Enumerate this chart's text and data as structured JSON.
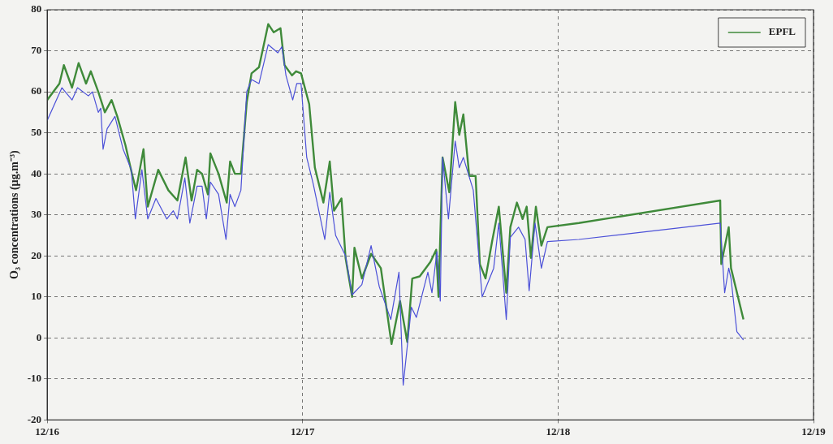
{
  "chart_data": {
    "type": "line",
    "ylabel": "O₃ concentrations (µg.m⁻³)",
    "xlim": [
      "--12-16",
      "--12-19"
    ],
    "xticks": [
      {
        "value": "--12-16",
        "label": "12/16"
      },
      {
        "value": "--12-17",
        "label": "12/17"
      },
      {
        "value": "--12-18",
        "label": "12/18"
      },
      {
        "value": "--12-19",
        "label": "12/19"
      }
    ],
    "ylim": [
      -20,
      80
    ],
    "yticks": [
      -20,
      -10,
      0,
      10,
      20,
      30,
      40,
      50,
      60,
      70,
      80
    ],
    "grid": true,
    "legend": "top right",
    "marker": "none",
    "line_style": "solid",
    "series": [
      {
        "color": "#4b50d8",
        "x": [
          "--12-16T00:00",
          "--12-16T01:23",
          "--12-16T02:20",
          "--12-16T02:51",
          "--12-16T03:52",
          "--12-16T04:15",
          "--12-16T04:48",
          "--12-16T05:02",
          "--12-16T05:15",
          "--12-16T05:38",
          "--12-16T06:22",
          "--12-16T07:08",
          "--12-16T07:54",
          "--12-16T08:17",
          "--12-16T08:54",
          "--12-16T09:27",
          "--12-16T10:13",
          "--12-16T11:14",
          "--12-16T11:51",
          "--12-16T12:14",
          "--12-16T12:56",
          "--12-16T13:24",
          "--12-16T14:05",
          "--12-16T14:33",
          "--12-16T14:57",
          "--12-16T15:20",
          "--12-16T16:06",
          "--12-16T16:48",
          "--12-16T17:11",
          "--12-16T17:38",
          "--12-16T18:12",
          "--12-16T18:45",
          "--12-16T19:12",
          "--12-16T19:54",
          "--12-16T20:46",
          "--12-16T21:40",
          "--12-16T22:03",
          "--12-16T22:26",
          "--12-16T23:04",
          "--12-16T23:27",
          "--12-16T23:51",
          "--12-17T00:23",
          "--12-17T01:00",
          "--12-17T02:05",
          "--12-17T02:33",
          "--12-17T03:06",
          "--12-17T04:02",
          "--12-17T04:39",
          "--12-17T05:34",
          "--12-17T06:26",
          "--12-17T07:12",
          "--12-17T08:17",
          "--12-17T09:03",
          "--12-17T09:27",
          "--12-17T10:13",
          "--12-17T10:41",
          "--12-17T11:46",
          "--12-17T12:09",
          "--12-17T12:37",
          "--12-17T12:56",
          "--12-17T13:09",
          "--12-17T13:42",
          "--12-17T14:20",
          "--12-17T14:43",
          "--12-17T15:06",
          "--12-17T16:02",
          "--12-17T16:52",
          "--12-17T17:57",
          "--12-17T18:26",
          "--12-17T19:08",
          "--12-17T19:31",
          "--12-17T20:17",
          "--12-17T20:54",
          "--12-17T21:17",
          "--12-17T21:50",
          "--12-17T22:26",
          "--12-17T23:00",
          "--12-18T01:57",
          "--12-18T15:14",
          "--12-18T15:39",
          "--12-18T16:02",
          "--12-18T16:15",
          "--12-18T16:48",
          "--12-18T17:25"
        ],
        "values": [
          53,
          61,
          58,
          61,
          59,
          60,
          55,
          56,
          46,
          51,
          54,
          46,
          41,
          29,
          41,
          29,
          34,
          29,
          31,
          29,
          39,
          28,
          37,
          37,
          29,
          38,
          35,
          24,
          35,
          32,
          36,
          60,
          63,
          62,
          71.5,
          69.5,
          71,
          64,
          58,
          62,
          62,
          44,
          37.5,
          24,
          35.5,
          25,
          20,
          10.5,
          13,
          22.5,
          12.5,
          4.5,
          16,
          -11.5,
          7.5,
          5,
          16,
          11,
          21,
          9,
          44,
          29,
          48,
          41.5,
          44,
          36,
          10,
          17,
          28,
          4.5,
          24.5,
          27,
          24,
          11.5,
          28,
          17,
          23.5,
          24,
          28,
          11,
          17,
          14.5,
          1.5,
          -0.5
        ]
      },
      {
        "name": "EPFL",
        "color": "#3f8a3a",
        "x": [
          "--12-16T00:00",
          "--12-16T01:09",
          "--12-16T01:34",
          "--12-16T02:20",
          "--12-16T02:57",
          "--12-16T03:39",
          "--12-16T04:06",
          "--12-16T04:48",
          "--12-16T05:25",
          "--12-16T06:03",
          "--12-16T06:35",
          "--12-16T07:21",
          "--12-16T07:58",
          "--12-16T08:21",
          "--12-16T09:03",
          "--12-16T09:27",
          "--12-16T10:26",
          "--12-16T11:23",
          "--12-16T12:14",
          "--12-16T13:00",
          "--12-16T13:34",
          "--12-16T14:05",
          "--12-16T14:33",
          "--12-16T15:06",
          "--12-16T15:20",
          "--12-16T16:06",
          "--12-16T16:52",
          "--12-16T17:11",
          "--12-16T17:38",
          "--12-16T18:12",
          "--12-16T18:45",
          "--12-16T19:12",
          "--12-16T19:54",
          "--12-16T20:46",
          "--12-16T21:17",
          "--12-16T21:55",
          "--12-16T22:18",
          "--12-16T23:00",
          "--12-16T23:23",
          "--12-16T23:51",
          "--12-17T00:37",
          "--12-17T01:09",
          "--12-17T01:57",
          "--12-17T02:33",
          "--12-17T02:57",
          "--12-17T03:39",
          "--12-17T04:02",
          "--12-17T04:39",
          "--12-17T04:52",
          "--12-17T05:34",
          "--12-17T06:26",
          "--12-17T07:21",
          "--12-17T08:21",
          "--12-17T09:09",
          "--12-17T09:50",
          "--12-17T10:18",
          "--12-17T11:00",
          "--12-17T12:00",
          "--12-17T12:33",
          "--12-17T12:46",
          "--12-17T13:09",
          "--12-17T13:47",
          "--12-17T14:20",
          "--12-17T14:43",
          "--12-17T15:06",
          "--12-17T15:39",
          "--12-17T16:15",
          "--12-17T16:39",
          "--12-17T17:11",
          "--12-17T17:48",
          "--12-17T18:26",
          "--12-17T19:08",
          "--12-17T19:31",
          "--12-17T20:08",
          "--12-17T20:40",
          "--12-17T21:03",
          "--12-17T21:27",
          "--12-17T21:55",
          "--12-17T22:26",
          "--12-17T23:00",
          "--12-18T01:57",
          "--12-18T15:14",
          "--12-18T15:20",
          "--12-18T16:02",
          "--12-18T16:15",
          "--12-18T17:25"
        ],
        "values": [
          58,
          62,
          66.5,
          61,
          67,
          62,
          65,
          60,
          55,
          58,
          54,
          47,
          40,
          36,
          46,
          32,
          41,
          36,
          33.5,
          44,
          33.5,
          41,
          40,
          35,
          45,
          40,
          33,
          43,
          40,
          40,
          57.5,
          64.5,
          66,
          76.5,
          74.5,
          75.5,
          66.5,
          64,
          65,
          64.5,
          57,
          41.5,
          33,
          43,
          31,
          34,
          19.5,
          10,
          22,
          14.5,
          20.5,
          17,
          -1.5,
          9,
          -1,
          14.5,
          15,
          18.5,
          21.5,
          10,
          44,
          35.5,
          57.5,
          49.5,
          54.5,
          39.5,
          39.5,
          18,
          14.5,
          23.5,
          32,
          11,
          27,
          33,
          29,
          32,
          19.5,
          32,
          22.5,
          27,
          28,
          33.5,
          18,
          27,
          17,
          4.5
        ]
      }
    ]
  }
}
